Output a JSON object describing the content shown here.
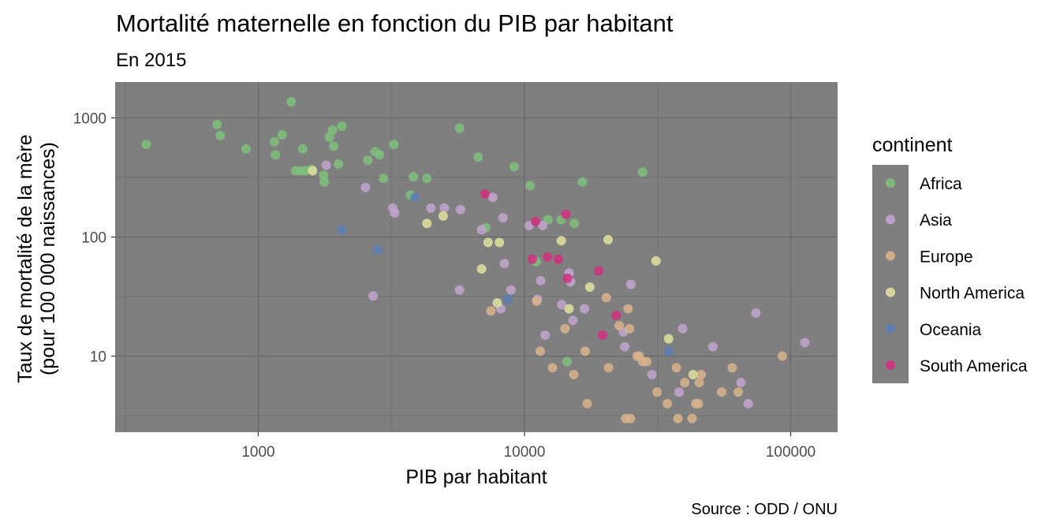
{
  "chart_data": {
    "type": "scatter",
    "title": "Mortalité maternelle en fonction du PIB par habitant",
    "subtitle": "En 2015",
    "xlabel": "PIB par habitant",
    "ylabel": "Taux de mortalité de la mère\n(pour 100 000 naissances)",
    "caption": "Source : ODD / ONU",
    "x_scale": "log10",
    "y_scale": "log10",
    "xlim": [
      290,
      150000
    ],
    "ylim": [
      2.3,
      2000
    ],
    "x_ticks": [
      {
        "value": 1000,
        "label": "1000"
      },
      {
        "value": 10000,
        "label": "10000"
      },
      {
        "value": 100000,
        "label": "100000"
      }
    ],
    "y_ticks": [
      {
        "value": 10,
        "label": "10"
      },
      {
        "value": 100,
        "label": "100"
      },
      {
        "value": 1000,
        "label": "1000"
      }
    ],
    "grid": true,
    "legend": {
      "title": "continent",
      "position": "right"
    },
    "series": [
      {
        "name": "Africa",
        "color": "#7fbf7b",
        "points": [
          [
            380,
            600
          ],
          [
            700,
            880
          ],
          [
            720,
            710
          ],
          [
            900,
            550
          ],
          [
            1150,
            630
          ],
          [
            1160,
            490
          ],
          [
            1230,
            720
          ],
          [
            1330,
            1360
          ],
          [
            1380,
            360
          ],
          [
            1440,
            360
          ],
          [
            1470,
            550
          ],
          [
            1500,
            360
          ],
          [
            1580,
            370
          ],
          [
            1760,
            330
          ],
          [
            1770,
            290
          ],
          [
            1850,
            690
          ],
          [
            1900,
            790
          ],
          [
            1920,
            580
          ],
          [
            2000,
            410
          ],
          [
            2060,
            850
          ],
          [
            2580,
            440
          ],
          [
            2750,
            520
          ],
          [
            2850,
            490
          ],
          [
            2950,
            310
          ],
          [
            3230,
            600
          ],
          [
            3730,
            225
          ],
          [
            3830,
            320
          ],
          [
            4300,
            310
          ],
          [
            5700,
            820
          ],
          [
            6700,
            470
          ],
          [
            7150,
            120
          ],
          [
            9150,
            390
          ],
          [
            10500,
            270
          ],
          [
            11050,
            62
          ],
          [
            12250,
            140
          ],
          [
            13750,
            140
          ],
          [
            14450,
            9
          ],
          [
            15400,
            130
          ],
          [
            16500,
            290
          ],
          [
            27800,
            350
          ]
        ]
      },
      {
        "name": "Asia",
        "color": "#c2a5cf",
        "points": [
          [
            1800,
            400
          ],
          [
            2530,
            260
          ],
          [
            2700,
            32
          ],
          [
            3200,
            175
          ],
          [
            3250,
            160
          ],
          [
            4450,
            175
          ],
          [
            5000,
            175
          ],
          [
            5700,
            36
          ],
          [
            5750,
            170
          ],
          [
            6900,
            115
          ],
          [
            7600,
            215
          ],
          [
            8150,
            25
          ],
          [
            8300,
            145
          ],
          [
            8400,
            60
          ],
          [
            8900,
            36
          ],
          [
            10400,
            125
          ],
          [
            11200,
            30
          ],
          [
            11500,
            43
          ],
          [
            11700,
            125
          ],
          [
            11950,
            15
          ],
          [
            13800,
            27
          ],
          [
            14700,
            50
          ],
          [
            14900,
            42
          ],
          [
            15200,
            20
          ],
          [
            16800,
            25
          ],
          [
            23500,
            16
          ],
          [
            23800,
            12
          ],
          [
            25100,
            40
          ],
          [
            30100,
            7
          ],
          [
            38100,
            5
          ],
          [
            39300,
            17
          ],
          [
            51000,
            12
          ],
          [
            65000,
            6
          ],
          [
            69300,
            4
          ],
          [
            74000,
            23
          ],
          [
            113000,
            13
          ]
        ]
      },
      {
        "name": "Europe",
        "color": "#d9b38c",
        "points": [
          [
            7480,
            24
          ],
          [
            11100,
            29
          ],
          [
            11450,
            11
          ],
          [
            12750,
            8
          ],
          [
            14200,
            17
          ],
          [
            15300,
            7
          ],
          [
            16900,
            11
          ],
          [
            17200,
            4
          ],
          [
            20300,
            31
          ],
          [
            20700,
            8
          ],
          [
            22700,
            18
          ],
          [
            24000,
            3
          ],
          [
            24500,
            25
          ],
          [
            24800,
            17
          ],
          [
            25000,
            3
          ],
          [
            26500,
            10
          ],
          [
            27000,
            10
          ],
          [
            27800,
            9
          ],
          [
            28800,
            9
          ],
          [
            31500,
            5
          ],
          [
            34400,
            4
          ],
          [
            37200,
            8
          ],
          [
            37700,
            3
          ],
          [
            40000,
            6
          ],
          [
            42600,
            3
          ],
          [
            44000,
            4
          ],
          [
            45000,
            4
          ],
          [
            45300,
            6
          ],
          [
            46100,
            7
          ],
          [
            55000,
            5
          ],
          [
            60300,
            8
          ],
          [
            63500,
            5
          ],
          [
            93000,
            10
          ]
        ]
      },
      {
        "name": "North America",
        "color": "#e0e0a0",
        "points": [
          [
            1600,
            360
          ],
          [
            4300,
            130
          ],
          [
            4950,
            150
          ],
          [
            6900,
            54
          ],
          [
            7300,
            90
          ],
          [
            7900,
            28
          ],
          [
            8050,
            90
          ],
          [
            13750,
            93
          ],
          [
            14700,
            25
          ],
          [
            17600,
            38
          ],
          [
            20600,
            95
          ],
          [
            31200,
            63
          ],
          [
            34800,
            14
          ],
          [
            43000,
            7
          ]
        ]
      },
      {
        "name": "Oceania",
        "color": "#5a7fb5",
        "points": [
          [
            2060,
            115
          ],
          [
            2800,
            78
          ],
          [
            3880,
            215
          ],
          [
            8650,
            30
          ],
          [
            34800,
            11
          ]
        ]
      },
      {
        "name": "South America",
        "color": "#d0307f",
        "points": [
          [
            7100,
            230
          ],
          [
            10700,
            65
          ],
          [
            11000,
            135
          ],
          [
            12200,
            68
          ],
          [
            13400,
            65
          ],
          [
            14300,
            155
          ],
          [
            14500,
            45
          ],
          [
            19000,
            52
          ],
          [
            19600,
            15
          ],
          [
            22100,
            22
          ]
        ]
      }
    ]
  }
}
